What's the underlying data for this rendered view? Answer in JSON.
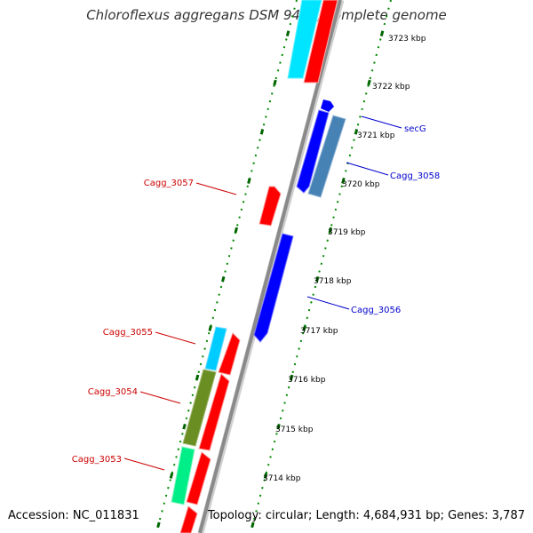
{
  "title": "Chloroflexus aggregans DSM 9485, complete genome",
  "accession": "Accession: NC_011831",
  "summary": "Topology: circular; Length: 4,684,931 bp; Genes: 3,787",
  "ruler": [
    "3723 kbp",
    "3722 kbp",
    "3721 kbp",
    "3720 kbp",
    "3719 kbp",
    "3718 kbp",
    "3717 kbp",
    "3716 kbp",
    "3715 kbp",
    "3714 kbp"
  ],
  "labels": {
    "secG": "secG",
    "cagg3058": "Cagg_3058",
    "cagg3057": "Cagg_3057",
    "cagg3056": "Cagg_3056",
    "cagg3055": "Cagg_3055",
    "cagg3054": "Cagg_3054",
    "cagg3053": "Cagg_3053"
  },
  "colors": {
    "forward_cds": "#ff0000",
    "reverse_cds": "#0000ff",
    "label_red": "#cc0000",
    "label_blue": "#0000cc",
    "cyan": "#00d8ff",
    "steel_blue": "#4682b4",
    "olive": "#6b8e23",
    "spring_green": "#00ee88",
    "ticks": "#006600"
  }
}
